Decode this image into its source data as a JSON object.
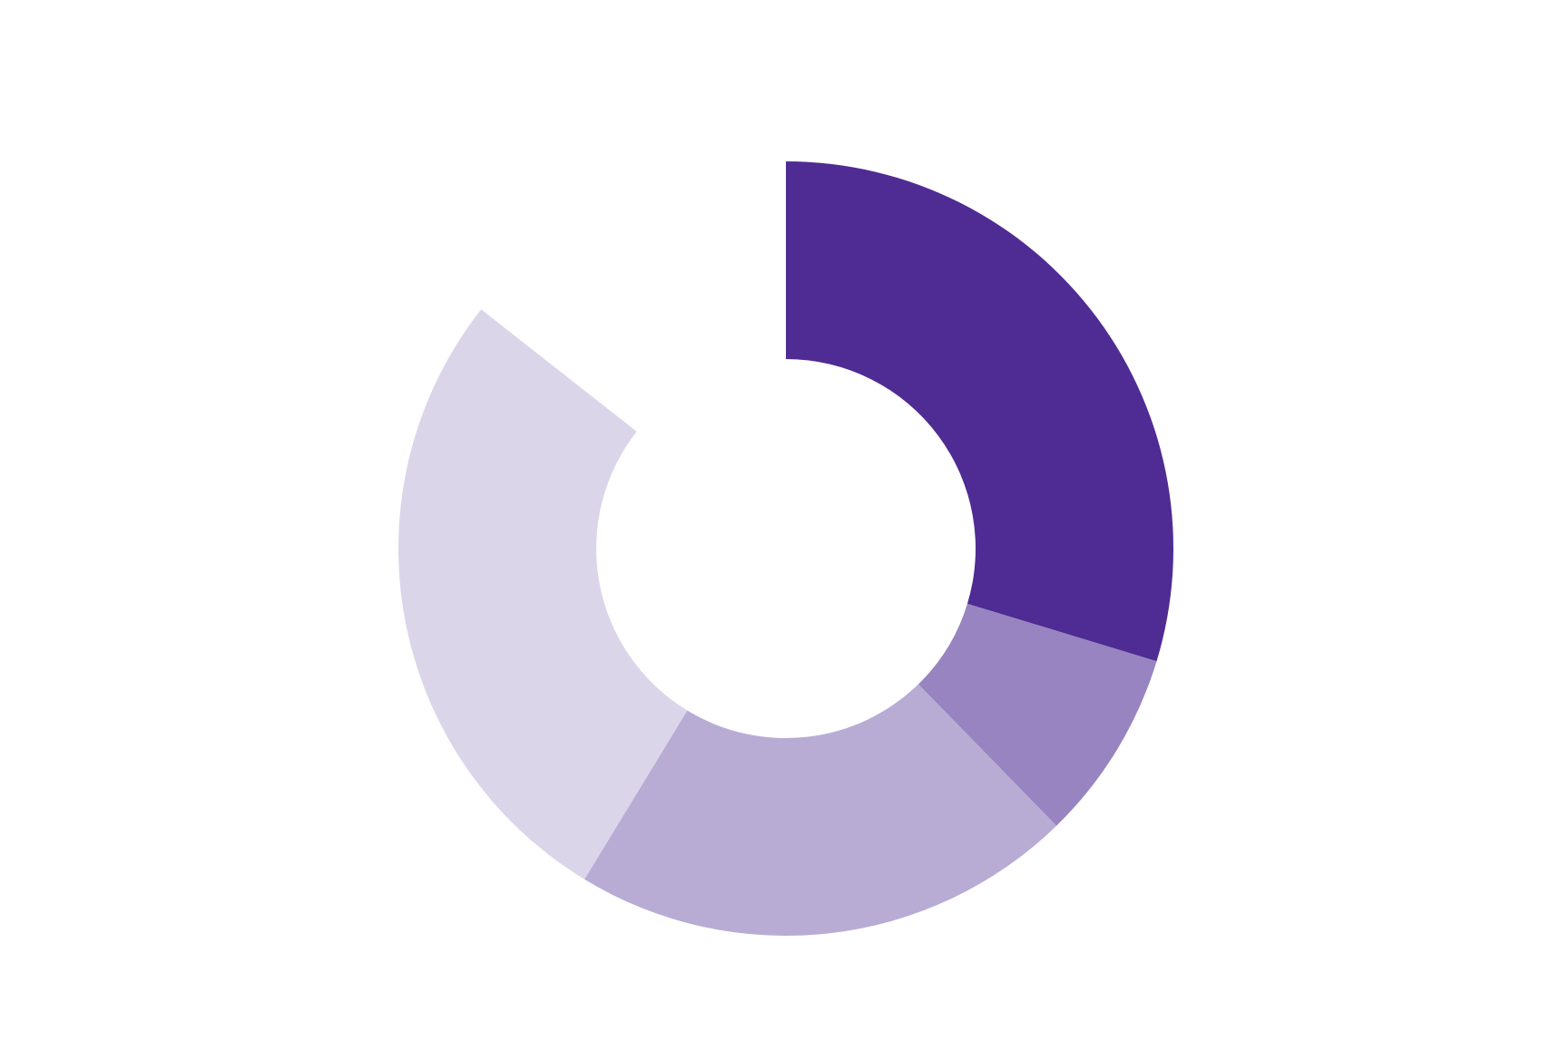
{
  "chart_data": {
    "type": "donut",
    "values": [
      29.7,
      8,
      21,
      26.9,
      14.4
    ],
    "colors": [
      "#4e2c93",
      "#9784c0",
      "#b8acd5",
      "#dbd5ea",
      "#ffffff"
    ]
  }
}
